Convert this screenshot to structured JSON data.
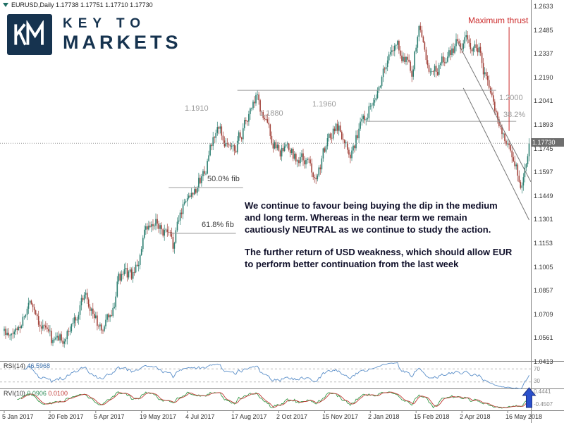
{
  "chart": {
    "ohlc_readout": "EURUSD,Daily 1.17738 1.17751 1.17710 1.17730",
    "current_price": "1.17730"
  },
  "logo": {
    "monogram": "KM",
    "line1": "KEY TO",
    "line2": "MARKETS"
  },
  "annotations": {
    "maximum_thrust": "Maximum thrust",
    "level_1_1910": "1.1910",
    "level_1_1880": "1.1880",
    "level_1_1960": "1.1960",
    "level_1_2000": "1.2000",
    "fib_382": "38.2%",
    "fib_50": "50.0% fib",
    "fib_618": "61.8% fib"
  },
  "commentary": {
    "para1": "We continue to favour being buying the dip in the medium\nand long term. Whereas in the near term we remain\ncautiously NEUTRAL as we continue to study the action.",
    "para2": "The further return of USD weakness, which should allow EUR\nto perform better continuation from the last week"
  },
  "price_scale": [
    "1.2633",
    "1.2485",
    "1.2337",
    "1.2190",
    "1.2041",
    "1.1893",
    "1.1745",
    "1.1597",
    "1.1449",
    "1.1301",
    "1.1153",
    "1.1005",
    "1.0857",
    "1.0709",
    "1.0561",
    "1.0413"
  ],
  "x_axis": {
    "dates": [
      "5 Jan 2017",
      "20 Feb 2017",
      "5 Apr 2017",
      "19 May 2017",
      "4 Jul 2017",
      "17 Aug 2017",
      "2 Oct 2017",
      "15 Nov 2017",
      "2 Jan 2018",
      "15 Feb 2018",
      "2 Apr 2018",
      "16 May 2018"
    ]
  },
  "indicators": {
    "rsi": {
      "label": "RSI(14)",
      "value": "46.5968",
      "level_top": "70",
      "level_bottom": "30"
    },
    "rvi": {
      "label": "RVI(10)",
      "value1": "0.0906",
      "value2": "0.0100",
      "scale_top": "0.4441",
      "scale_bottom": "-0.4507"
    }
  },
  "chart_data": {
    "type": "candlestick",
    "symbol": "EURUSD",
    "timeframe": "Daily",
    "bars": 368,
    "price_range": [
      1.0413,
      1.2633
    ],
    "x_label_every_bars": 32,
    "anchors": [
      [
        0,
        1.06
      ],
      [
        4,
        1.0535
      ],
      [
        9,
        1.0614
      ],
      [
        14,
        1.071
      ],
      [
        19,
        1.0798
      ],
      [
        24,
        1.0686
      ],
      [
        34,
        1.0525
      ],
      [
        45,
        1.0578
      ],
      [
        57,
        1.0866
      ],
      [
        67,
        1.0595
      ],
      [
        77,
        1.0726
      ],
      [
        79,
        1.0928
      ],
      [
        91,
        1.0933
      ],
      [
        98,
        1.1184
      ],
      [
        108,
        1.1276
      ],
      [
        118,
        1.1133
      ],
      [
        126,
        1.1426
      ],
      [
        138,
        1.1555
      ],
      [
        149,
        1.1856
      ],
      [
        160,
        1.1726
      ],
      [
        176,
        1.2033
      ],
      [
        190,
        1.1743
      ],
      [
        210,
        1.1655
      ],
      [
        218,
        1.1588
      ],
      [
        232,
        1.1901
      ],
      [
        243,
        1.1741
      ],
      [
        257,
        1.2059
      ],
      [
        274,
        1.2394
      ],
      [
        285,
        1.2249
      ],
      [
        290,
        1.2492
      ],
      [
        299,
        1.2193
      ],
      [
        317,
        1.2402
      ],
      [
        332,
        1.237
      ],
      [
        342,
        1.1995
      ],
      [
        362,
        1.1535
      ],
      [
        367,
        1.1773
      ]
    ],
    "colors": {
      "up": "#2a7d6f",
      "down": "#a2423a",
      "rsi": "#5b8fc9",
      "rvi_main": "#3a9a4a",
      "rvi_signal": "#c03a35",
      "annotation_red": "#cc2a2a",
      "line_gray": "#9a9a9a"
    },
    "overlays": {
      "horizontal_segments": [
        {
          "bar1": 163,
          "bar2": 344,
          "price": 1.2104
        },
        {
          "bar1": 253,
          "bar2": 358,
          "price": 1.191
        },
        {
          "bar1": 115,
          "bar2": 167,
          "price": 1.1496
        },
        {
          "bar1": 116,
          "bar2": 162,
          "price": 1.121
        }
      ],
      "trend_lines": [
        {
          "bar1": 317,
          "price1": 1.2404,
          "bar2": 370,
          "price2": 1.1532
        },
        {
          "bar1": 321,
          "price1": 1.2118,
          "bar2": 367,
          "price2": 1.1294
        }
      ],
      "vertical_line": {
        "bar": 353,
        "price1": 1.25,
        "price2": 1.185
      },
      "current_price_line": 1.1773,
      "rsi_levels": [
        70,
        30
      ],
      "buy_arrow_bar": 366
    }
  }
}
